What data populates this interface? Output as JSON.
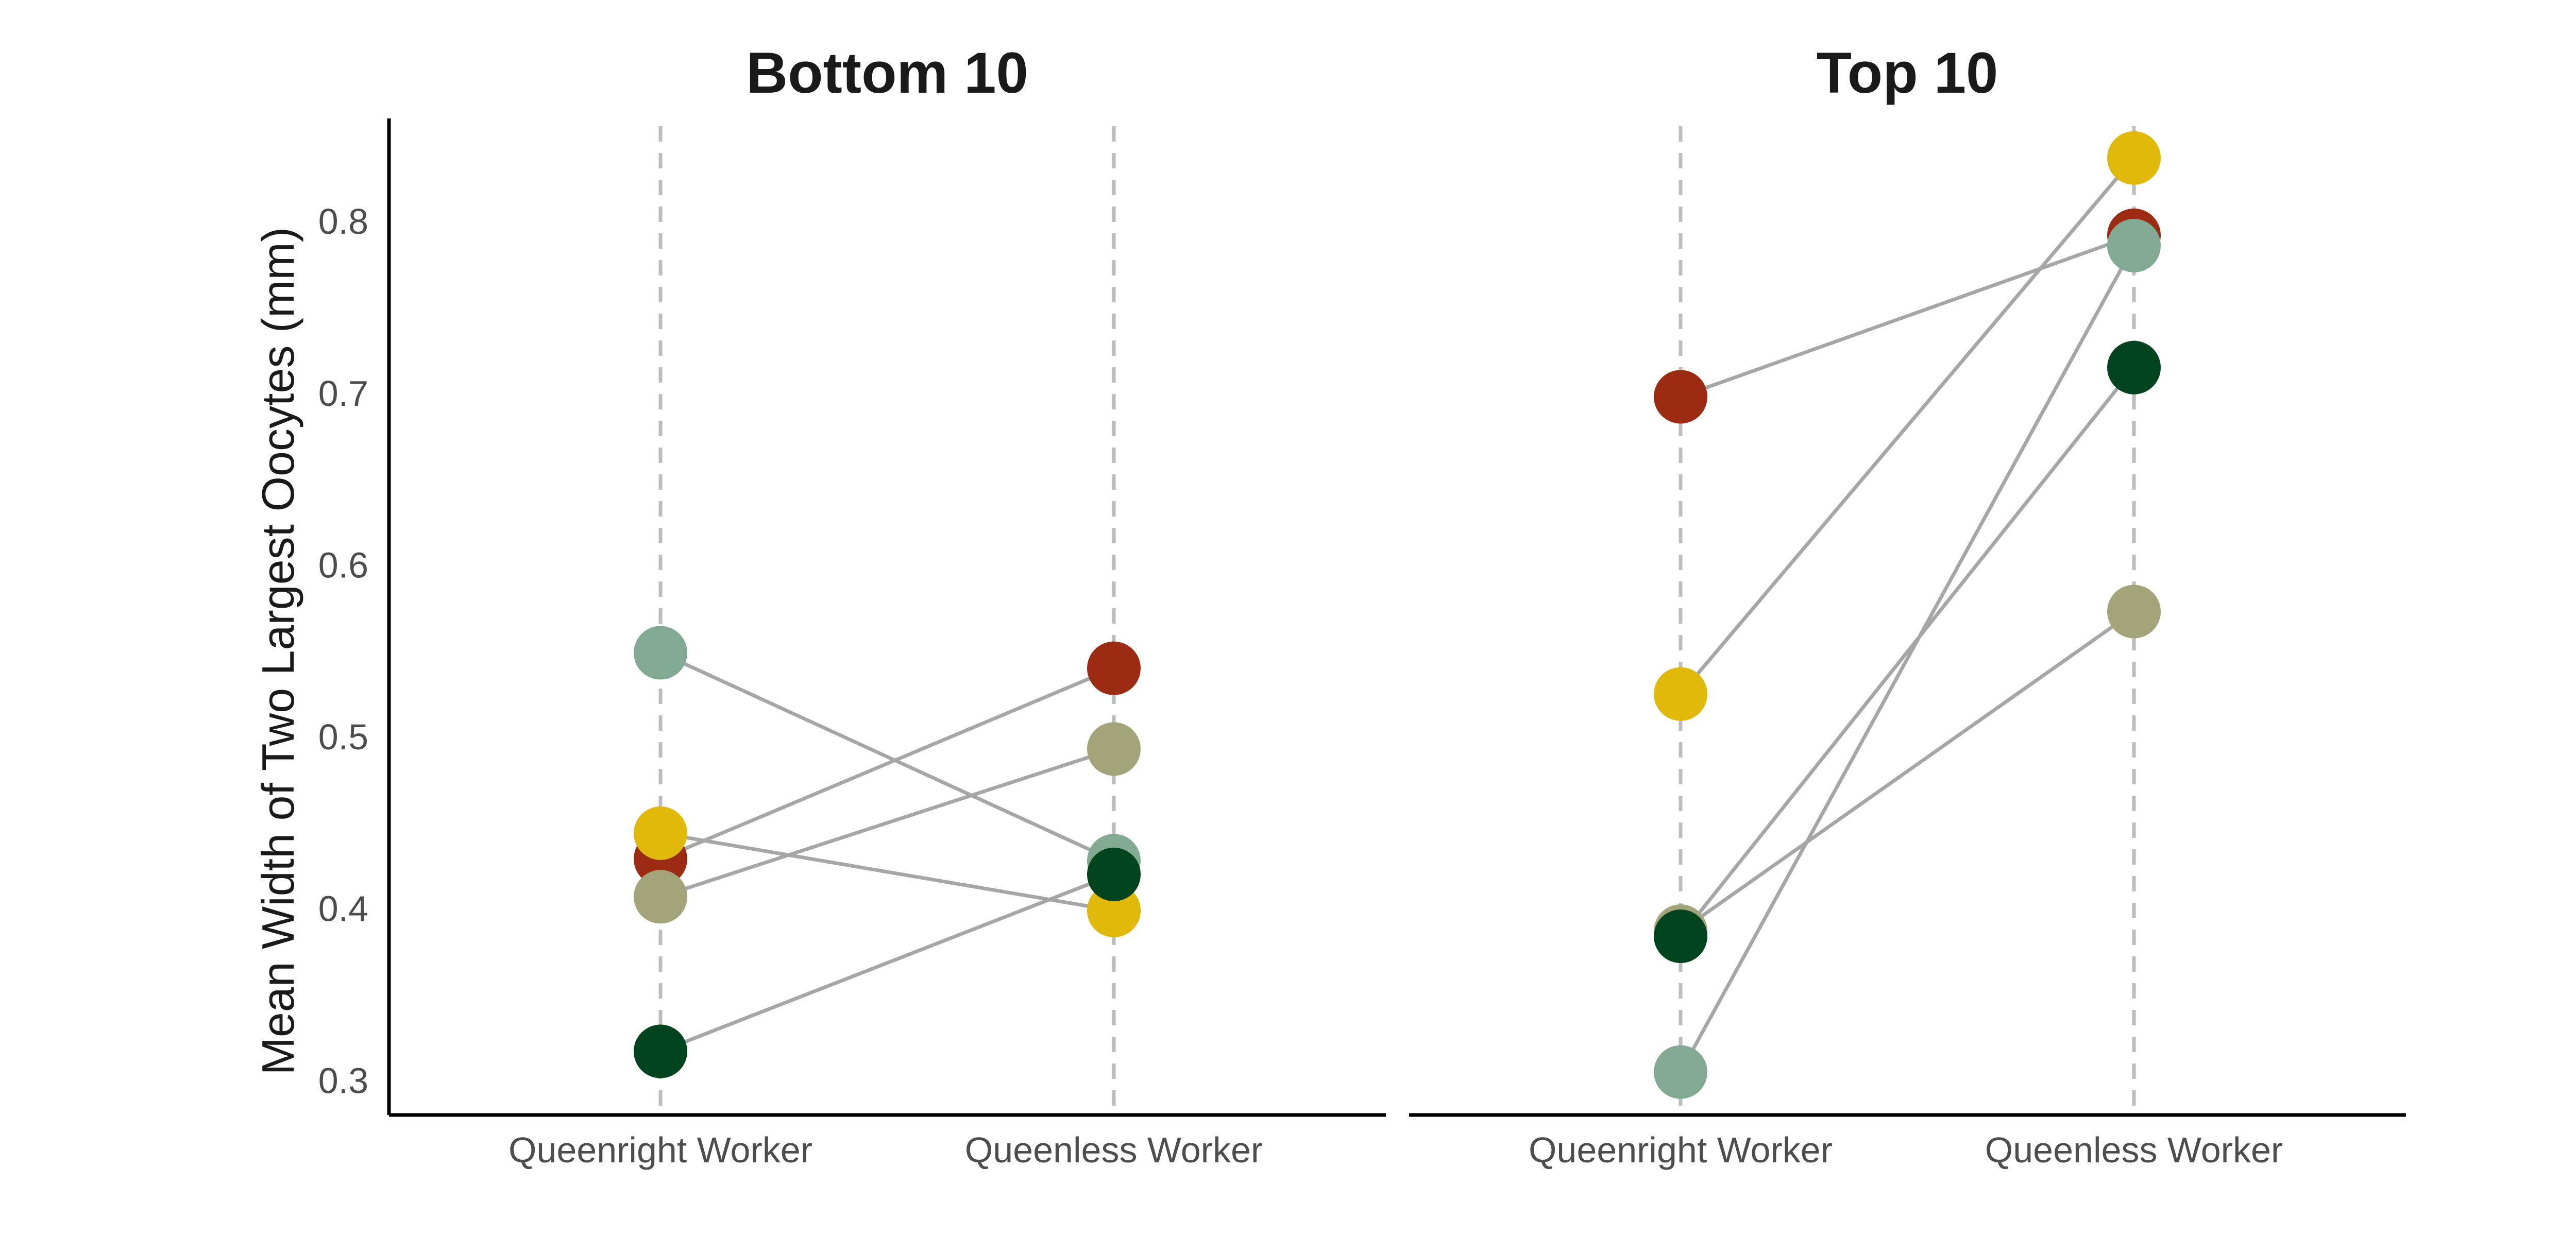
{
  "chart_data": {
    "type": "scatter",
    "ylabel": "Mean Width of Two Largest Oocytes (mm)",
    "ylim": [
      0.28,
      0.86
    ],
    "yticks": [
      "0.3",
      "0.4",
      "0.5",
      "0.6",
      "0.7",
      "0.8"
    ],
    "ytick_values": [
      0.3,
      0.4,
      0.5,
      0.6,
      0.7,
      0.8
    ],
    "categories": [
      "Queenright Worker",
      "Queenless Worker"
    ],
    "grid": "dashed vertical guides at each category; no horizontal grid",
    "legend": "none",
    "panels": [
      {
        "title": "Bottom 10",
        "colonies": [
          {
            "color": "#82A991",
            "values": [
              0.549,
              0.428
            ]
          },
          {
            "color": "#9B2C12",
            "values": [
              0.429,
              0.54
            ]
          },
          {
            "color": "#E0B90A",
            "values": [
              0.444,
              0.399
            ]
          },
          {
            "color": "#A3A479",
            "values": [
              0.407,
              0.493
            ]
          },
          {
            "color": "#02441E",
            "values": [
              0.317,
              0.42
            ]
          }
        ]
      },
      {
        "title": "Top 10",
        "colonies": [
          {
            "color": "#9B2C12",
            "values": [
              0.698,
              0.792
            ]
          },
          {
            "color": "#E0B90A",
            "values": [
              0.525,
              0.837
            ]
          },
          {
            "color": "#A3A479",
            "values": [
              0.387,
              0.573
            ]
          },
          {
            "color": "#02441E",
            "values": [
              0.384,
              0.715
            ]
          },
          {
            "color": "#82A991",
            "values": [
              0.305,
              0.786
            ]
          }
        ]
      }
    ]
  }
}
